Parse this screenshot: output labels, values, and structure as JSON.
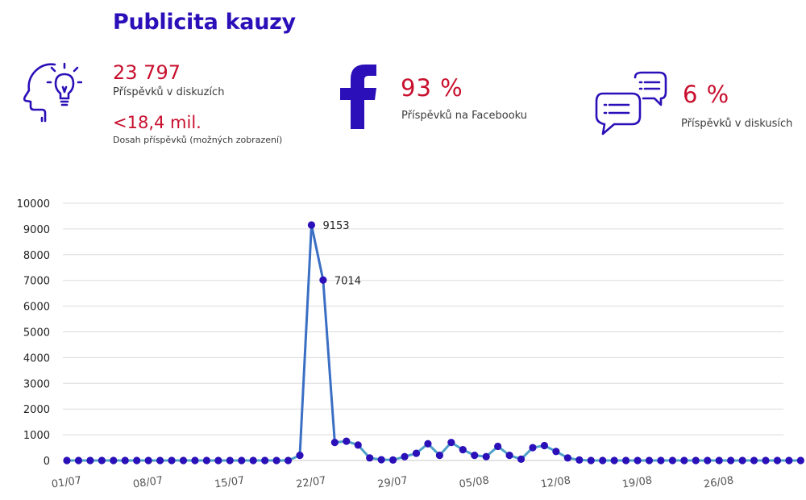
{
  "header": {
    "title": "Publicita kauzy"
  },
  "stats": {
    "posts_count": "23 797",
    "posts_label": "Příspěvků v diskuzích",
    "reach": "<18,4 mil.",
    "reach_label": "Dosah příspěvků (možných zobrazení)",
    "facebook_pct": "93 %",
    "facebook_label": "Příspěvků na Facebooku",
    "discussion_pct": "6 %",
    "discussion_label": "Příspěvků v diskusích"
  },
  "icons": {
    "head": "head-lightbulb-icon",
    "facebook": "facebook-icon",
    "chat": "chat-bubbles-icon"
  },
  "colors": {
    "brand": "#2b0fb8",
    "accent": "#c8102e",
    "line": "#3a6fc4",
    "line_light": "#4fa0c8",
    "marker": "#2b0fb8"
  },
  "chart_data": {
    "type": "line",
    "x_tick_labels": [
      "01/07",
      "08/07",
      "15/07",
      "22/07",
      "29/07",
      "05/08",
      "12/08",
      "19/08",
      "26/08"
    ],
    "y_ticks": [
      0,
      1000,
      2000,
      3000,
      4000,
      5000,
      6000,
      7000,
      8000,
      9000,
      10000
    ],
    "ylim": [
      0,
      10000
    ],
    "grid": true,
    "legend": "none",
    "values": [
      0,
      0,
      0,
      0,
      0,
      0,
      0,
      0,
      0,
      0,
      0,
      0,
      0,
      0,
      0,
      0,
      0,
      0,
      0,
      0,
      200,
      9153,
      7014,
      700,
      750,
      600,
      100,
      30,
      20,
      150,
      280,
      650,
      200,
      700,
      420,
      200,
      150,
      550,
      200,
      50,
      500,
      580,
      350,
      100,
      20,
      0,
      0,
      0,
      0,
      0,
      0,
      0,
      0,
      0,
      0,
      0,
      0,
      0,
      0,
      0,
      0,
      0,
      0,
      0
    ],
    "data_labels": [
      {
        "index": 21,
        "text": "9153"
      },
      {
        "index": 22,
        "text": "7014"
      }
    ]
  }
}
